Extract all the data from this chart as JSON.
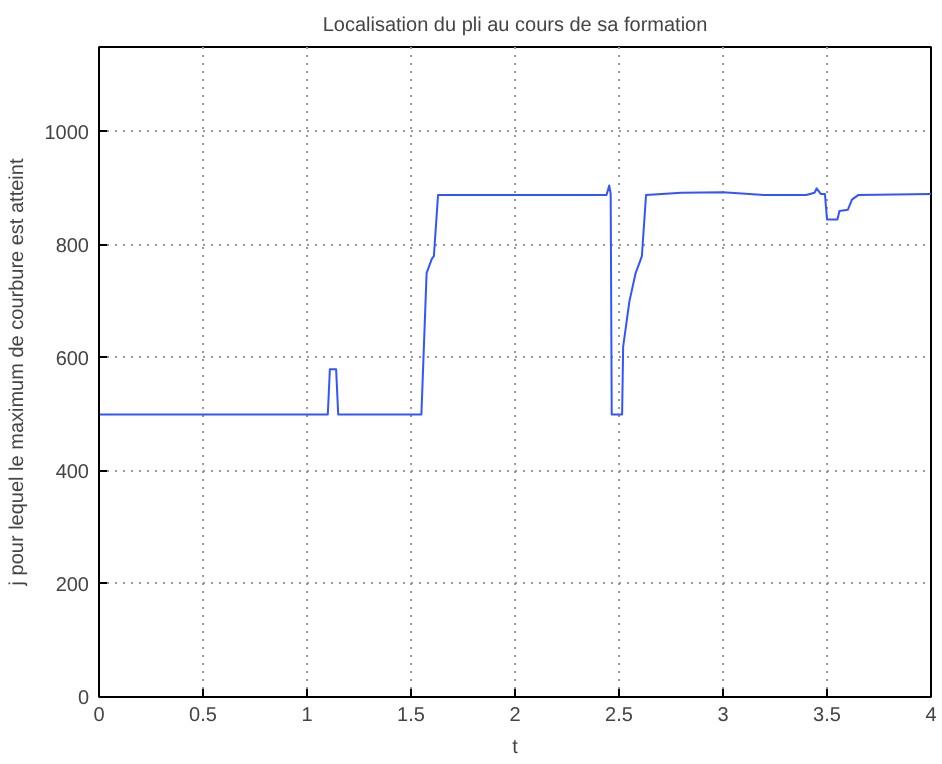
{
  "chart_data": {
    "type": "line",
    "title": "Localisation du pli au cours de sa formation",
    "xlabel": "t",
    "ylabel": "j pour lequel le maximum de courbure est atteint",
    "x": [
      0,
      1.1,
      1.11,
      1.14,
      1.15,
      1.55,
      1.56,
      1.575,
      1.585,
      1.6,
      1.61,
      1.63,
      2.44,
      2.453,
      2.46,
      2.465,
      2.515,
      2.52,
      2.55,
      2.58,
      2.6,
      2.61,
      2.63,
      2.8,
      3.0,
      3.2,
      3.4,
      3.44,
      3.45,
      3.47,
      3.49,
      3.5,
      3.55,
      3.56,
      3.6,
      3.62,
      3.65,
      4.0
    ],
    "series": [
      {
        "color": "#3355ff",
        "values": [
          500,
          500,
          580,
          580,
          500,
          500,
          600,
          750,
          760,
          775,
          780,
          888,
          888,
          905,
          890,
          500,
          500,
          620,
          700,
          750,
          770,
          780,
          888,
          892,
          893,
          888,
          888,
          892,
          900,
          890,
          890,
          845,
          845,
          860,
          862,
          880,
          888,
          890
        ]
      }
    ],
    "xlim": [
      0,
      4
    ],
    "ylim": [
      0,
      1150
    ],
    "xticks": [
      0,
      0.5,
      1,
      1.5,
      2,
      2.5,
      3,
      3.5,
      4
    ],
    "yticks": [
      0,
      200,
      400,
      600,
      800,
      1000
    ],
    "grid": true
  }
}
